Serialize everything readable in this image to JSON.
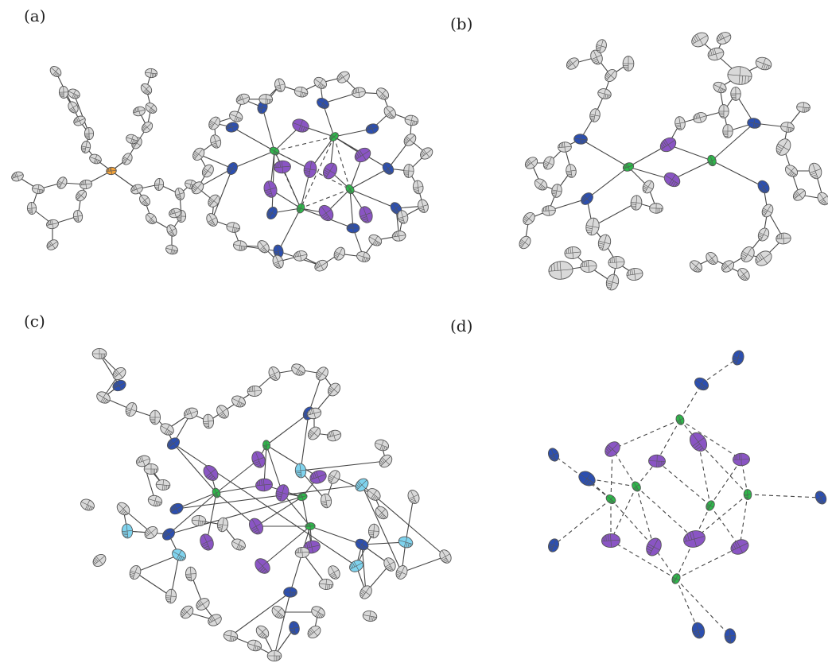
{
  "labels": {
    "a": "(a)",
    "b": "(b)",
    "c": "(c)",
    "d": "(d)"
  },
  "colors": {
    "carbon": "#d9d9d9",
    "nitrogen": "#2c4fb0",
    "metal": "#2db84a",
    "iodide": "#8a55c4",
    "phosphorus": "#f2a23a",
    "silicon": "#7fd3ee",
    "background": "#ffffff"
  }
}
